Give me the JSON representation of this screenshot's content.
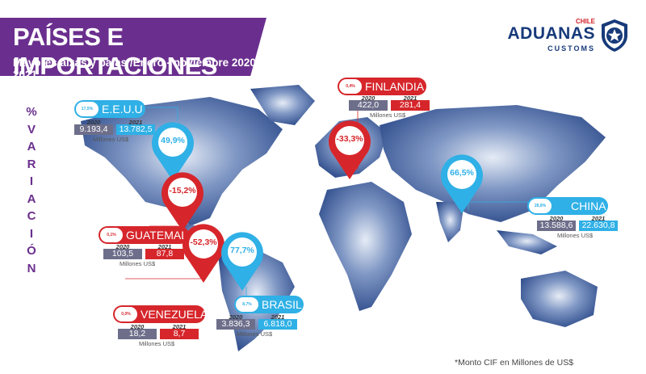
{
  "header": {
    "title": "PAÍSES E IMPORTACIONES",
    "subtitle": "Mayores alzas y bajas /Enero - noviembre 2020-2021"
  },
  "logo": {
    "chile": "CHILE",
    "aduanas": "ADUANAS",
    "customs": "CUSTOMS"
  },
  "side_label": [
    "%",
    "V",
    "A",
    "R",
    "I",
    "A",
    "C",
    "I",
    "Ó",
    "N"
  ],
  "colors": {
    "purple": "#6a2f8e",
    "red": "#d6262b",
    "blue": "#2fb0e6",
    "gray": "#6d6e8a",
    "navy": "#173a7a"
  },
  "countries": [
    {
      "key": "eeuu",
      "name": "E.E.U.U",
      "badge": "17,5%",
      "pct": "49,9%",
      "y2020": "2020",
      "y2021": "2021",
      "v2020": "9.193,4",
      "v2021": "13.782,5",
      "unit": "Millones US$",
      "color": "blue"
    },
    {
      "key": "guatemala",
      "name": "GUATEMALA",
      "badge": "0,1%",
      "pct": "-15,2%",
      "y2020": "2020",
      "y2021": "2021",
      "v2020": "103,5",
      "v2021": "87,8",
      "unit": "Millones US$",
      "color": "red"
    },
    {
      "key": "venezuela",
      "name": "VENEZUELA",
      "badge": "0,0%",
      "pct": "-52,3%",
      "y2020": "2020",
      "y2021": "2021",
      "v2020": "18,2",
      "v2021": "8,7",
      "unit": "Millones US$",
      "color": "red"
    },
    {
      "key": "brasil",
      "name": "BRASIL",
      "badge": "8,7%",
      "pct": "77,7%",
      "y2020": "2020",
      "y2021": "2021",
      "v2020": "3.836,3",
      "v2021": "6.818,0",
      "unit": "Millones US$",
      "color": "blue"
    },
    {
      "key": "finlandia",
      "name": "FINLANDIA",
      "badge": "0,4%",
      "pct": "-33,3%",
      "y2020": "2020",
      "y2021": "2021",
      "v2020": "422,0",
      "v2021": "281,4",
      "unit": "Millones US$",
      "color": "red"
    },
    {
      "key": "china",
      "name": "CHINA",
      "badge": "28,8%",
      "pct": "66,5%",
      "y2020": "2020",
      "y2021": "2021",
      "v2020": "13.588,6",
      "v2021": "22.630,8",
      "unit": "Millones US$",
      "color": "blue"
    }
  ],
  "footnote": "*Monto CIF en Millones de US$"
}
